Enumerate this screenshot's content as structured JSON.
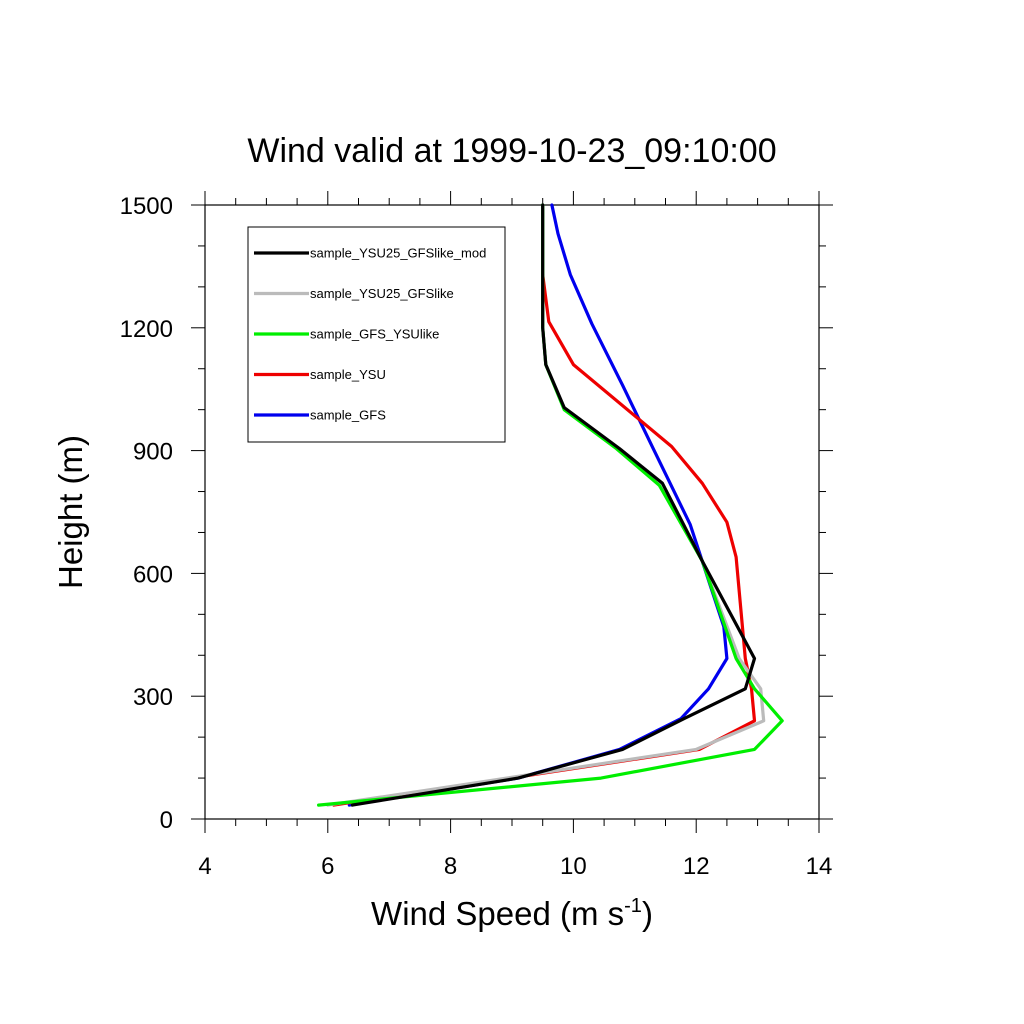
{
  "chart_data": {
    "type": "line",
    "title": "Wind valid at 1999-10-23_09:10:00",
    "xlabel": "Wind Speed (m s",
    "xlabel_sup": "-1",
    "xlabel_close": ")",
    "ylabel": "Height (m)",
    "xlim": [
      4,
      14
    ],
    "ylim": [
      0,
      1500
    ],
    "xticks": [
      "4",
      "6",
      "8",
      "10",
      "12",
      "14"
    ],
    "yticks": [
      "0",
      "300",
      "600",
      "900",
      "1200",
      "1500"
    ],
    "legend_position": "top-left",
    "grid": false,
    "series": [
      {
        "name": "sample_YSU25_GFSlike_mod",
        "color": "#000000",
        "points": [
          [
            6.4,
            34
          ],
          [
            9.1,
            100
          ],
          [
            10.8,
            170
          ],
          [
            11.8,
            245
          ],
          [
            12.8,
            318
          ],
          [
            12.95,
            392
          ],
          [
            12.1,
            630
          ],
          [
            11.45,
            820
          ],
          [
            10.75,
            905
          ],
          [
            9.85,
            1005
          ],
          [
            9.55,
            1110
          ],
          [
            9.5,
            1200
          ],
          [
            9.5,
            1500
          ]
        ]
      },
      {
        "name": "sample_YSU25_GFSlike",
        "color": "#bbbbbb",
        "points": [
          [
            6.0,
            34
          ],
          [
            12.0,
            170
          ],
          [
            13.1,
            240
          ],
          [
            13.05,
            318
          ],
          [
            12.7,
            392
          ],
          [
            12.1,
            630
          ],
          [
            11.45,
            820
          ],
          [
            10.75,
            905
          ],
          [
            9.85,
            1005
          ],
          [
            9.55,
            1110
          ],
          [
            9.5,
            1200
          ],
          [
            9.5,
            1500
          ]
        ]
      },
      {
        "name": "sample_GFS_YSUlike",
        "color": "#00ee00",
        "points": [
          [
            5.85,
            34
          ],
          [
            10.45,
            100
          ],
          [
            12.95,
            170
          ],
          [
            13.4,
            240
          ],
          [
            12.95,
            318
          ],
          [
            12.65,
            392
          ],
          [
            12.1,
            630
          ],
          [
            11.4,
            815
          ],
          [
            10.7,
            905
          ],
          [
            9.85,
            1000
          ],
          [
            9.55,
            1110
          ],
          [
            9.5,
            1200
          ],
          [
            9.5,
            1500
          ]
        ]
      },
      {
        "name": "sample_YSU",
        "color": "#ee0000",
        "points": [
          [
            6.1,
            34
          ],
          [
            12.05,
            170
          ],
          [
            12.95,
            240
          ],
          [
            12.9,
            318
          ],
          [
            12.8,
            392
          ],
          [
            12.65,
            640
          ],
          [
            12.5,
            725
          ],
          [
            12.1,
            820
          ],
          [
            11.6,
            910
          ],
          [
            10.0,
            1110
          ],
          [
            9.6,
            1215
          ],
          [
            9.5,
            1330
          ]
        ]
      },
      {
        "name": "sample_GFS",
        "color": "#0000ee",
        "points": [
          [
            6.35,
            34
          ],
          [
            9.1,
            100
          ],
          [
            10.75,
            170
          ],
          [
            11.75,
            245
          ],
          [
            12.2,
            318
          ],
          [
            12.5,
            392
          ],
          [
            12.45,
            470
          ],
          [
            11.9,
            720
          ],
          [
            11.3,
            905
          ],
          [
            10.8,
            1060
          ],
          [
            10.3,
            1210
          ],
          [
            9.95,
            1330
          ],
          [
            9.75,
            1430
          ],
          [
            9.65,
            1500
          ]
        ]
      }
    ]
  }
}
